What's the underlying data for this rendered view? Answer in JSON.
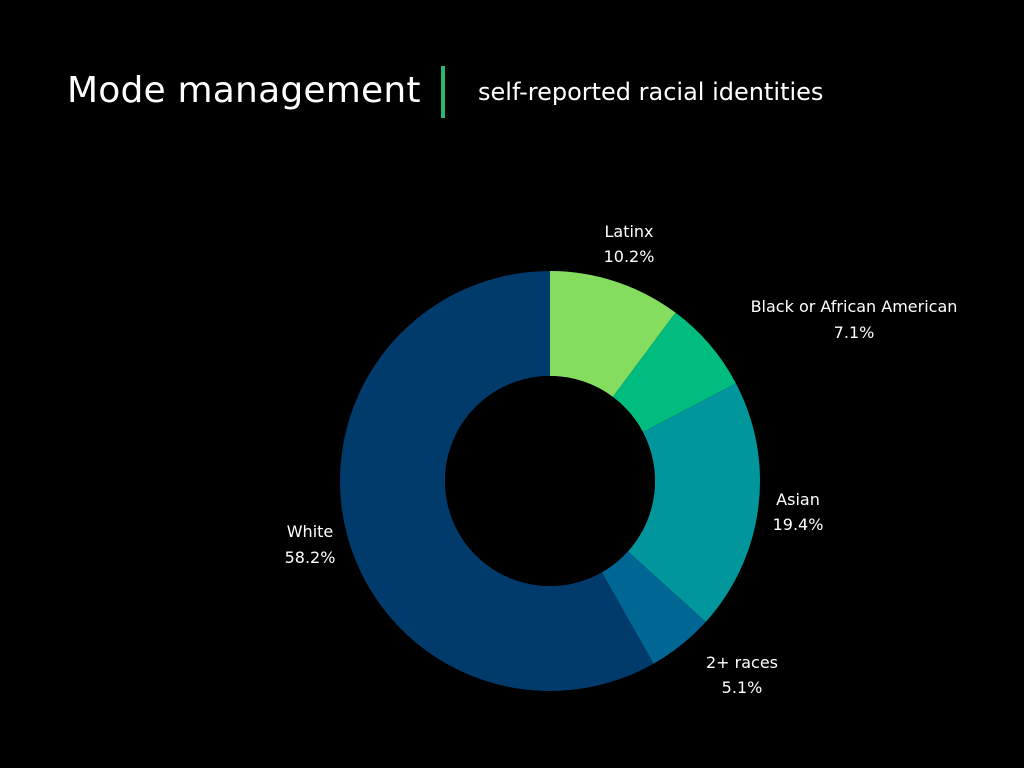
{
  "header": {
    "title": "Mode management",
    "subtitle": "self-reported racial identities",
    "divider_color": "#2bb673"
  },
  "chart_data": {
    "type": "pie",
    "variant": "donut",
    "title": "Mode management",
    "subtitle": "self-reported racial identities",
    "start_angle_deg": 0,
    "direction": "clockwise",
    "slices": [
      {
        "name": "Latinx",
        "value": 10.2,
        "label": "10.2%",
        "color": "#84dd5e"
      },
      {
        "name": "Black or African American",
        "value": 7.1,
        "label": "7.1%",
        "color": "#00bc7e"
      },
      {
        "name": "Asian",
        "value": 19.4,
        "label": "19.4%",
        "color": "#00969b"
      },
      {
        "name": "2+ races",
        "value": 5.1,
        "label": "5.1%",
        "color": "#006694"
      },
      {
        "name": "White",
        "value": 58.2,
        "label": "58.2%",
        "color": "#003b6b"
      }
    ]
  }
}
